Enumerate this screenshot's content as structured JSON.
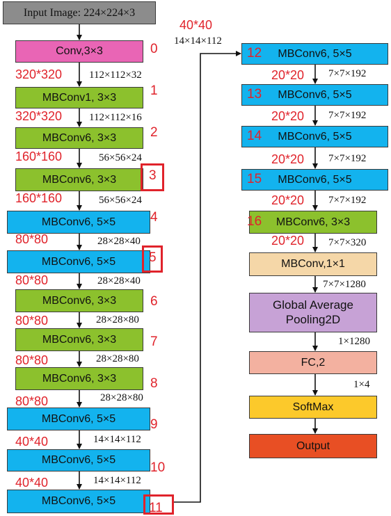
{
  "input_label": "Input Image: 224×224×3",
  "left_blocks": [
    {
      "label": "Conv,3×3",
      "idx": "0"
    },
    {
      "label": "MBConv1, 3×3",
      "idx": "1"
    },
    {
      "label": "MBConv6, 3×3",
      "idx": "2"
    },
    {
      "label": "MBConv6, 3×3",
      "idx": "3"
    },
    {
      "label": "MBConv6, 5×5",
      "idx": "4"
    },
    {
      "label": "MBConv6, 5×5",
      "idx": "5"
    },
    {
      "label": "MBConv6, 3×3",
      "idx": "6"
    },
    {
      "label": "MBConv6, 3×3",
      "idx": "7"
    },
    {
      "label": "MBConv6, 3×3",
      "idx": "8"
    },
    {
      "label": "MBConv6, 5×5",
      "idx": "9"
    },
    {
      "label": "MBConv6, 5×5",
      "idx": "10"
    },
    {
      "label": "MBConv6, 5×5",
      "idx": "11"
    }
  ],
  "left_dims": [
    "112×112×32",
    "112×112×16",
    "56×56×24",
    "56×56×24",
    "28×28×40",
    "28×28×40",
    "28×28×80",
    "28×28×80",
    "28×28×80",
    "14×14×112",
    "14×14×112"
  ],
  "left_res": [
    "320*320",
    "320*320",
    "160*160",
    "160*160",
    "80*80",
    "80*80",
    "80*80",
    "80*80",
    "80*80",
    "40*40",
    "40*40"
  ],
  "connector": {
    "res": "40*40",
    "dim": "14×14×112"
  },
  "right_blocks": [
    {
      "label": "MBConv6, 5×5",
      "idx": "12"
    },
    {
      "label": "MBConv6, 5×5",
      "idx": "13"
    },
    {
      "label": "MBConv6, 5×5",
      "idx": "14"
    },
    {
      "label": "MBConv6, 5×5",
      "idx": "15"
    },
    {
      "label": "MBConv6, 3×3",
      "idx": "16"
    }
  ],
  "right_dims": [
    "7×7×192",
    "7×7×192",
    "7×7×192",
    "7×7×192",
    "7×7×320"
  ],
  "right_res": [
    "20*20",
    "20*20",
    "20*20",
    "20*20",
    "20*20"
  ],
  "head": [
    {
      "label": "MBConv,1×1"
    },
    {
      "label": "Global Average Pooling2D"
    },
    {
      "label": "FC,2"
    },
    {
      "label": "SoftMax"
    },
    {
      "label": "Output"
    }
  ],
  "head_dims": [
    "7×7×1280",
    "1×1280",
    "1×4"
  ],
  "colors": {
    "input": "#8c8c8c",
    "conv": "#e965b5",
    "mbconv_3x3": "#8cc12d",
    "mbconv_5x5": "#13b3ee",
    "mbconv_1x1": "#f5d7a8",
    "pooling": "#c7a2d6",
    "fc": "#f3b1a0",
    "softmax": "#fcc92b",
    "output": "#e84f24",
    "annotation": "#e0232b"
  }
}
